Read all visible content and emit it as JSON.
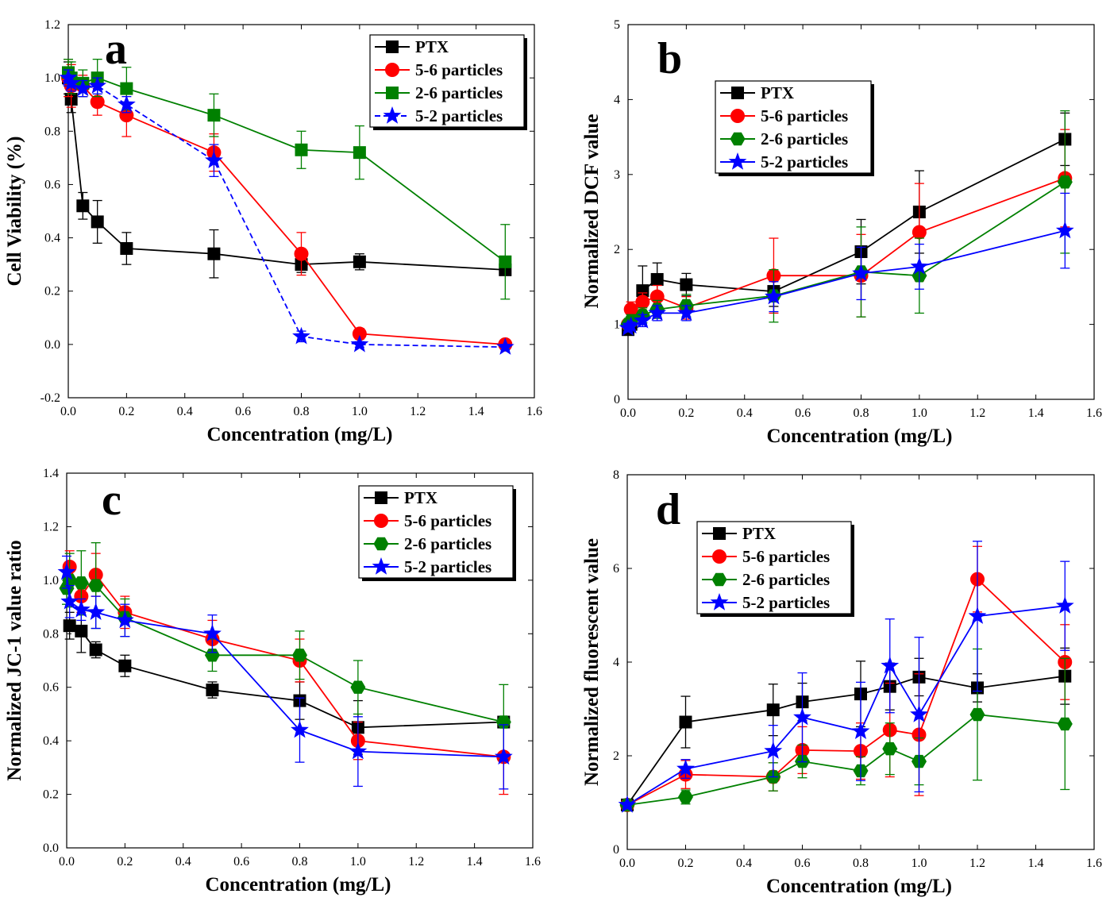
{
  "figure": {
    "colors": {
      "PTX": "#000000",
      "5-6 particles": "#ff0000",
      "2-6 particles": "#008000",
      "5-2 particles": "#0000ff"
    }
  },
  "chart_data": [
    {
      "panel": "a",
      "type": "line",
      "xlabel": "Concentration (mg/L)",
      "ylabel": "Cell Viability (%)",
      "xlim": [
        0.0,
        1.6
      ],
      "ylim": [
        -0.2,
        1.2
      ],
      "xticks": [
        "0.0",
        "0.2",
        "0.4",
        "0.6",
        "0.8",
        "1.0",
        "1.2",
        "1.4",
        "1.6"
      ],
      "yticks": [
        "-0.2",
        "0.0",
        "0.2",
        "0.4",
        "0.6",
        "0.8",
        "1.0",
        "1.2"
      ],
      "legend": {
        "position": "top-right",
        "entries": [
          "PTX",
          "5-6 particles",
          "2-6 particles",
          "5-2 particles"
        ]
      },
      "series": [
        {
          "name": "PTX",
          "marker": "square",
          "color": "#000000",
          "x": [
            0,
            0.01,
            0.05,
            0.1,
            0.2,
            0.5,
            0.8,
            1.0,
            1.5
          ],
          "y": [
            1.0,
            0.92,
            0.52,
            0.46,
            0.36,
            0.34,
            0.3,
            0.31,
            0.28
          ],
          "err": [
            0.06,
            0.05,
            0.05,
            0.08,
            0.06,
            0.09,
            0.03,
            0.03,
            0.02
          ]
        },
        {
          "name": "5-6 particles",
          "marker": "circle",
          "color": "#ff0000",
          "x": [
            0,
            0.01,
            0.05,
            0.1,
            0.2,
            0.5,
            0.8,
            1.0,
            1.5
          ],
          "y": [
            1.0,
            0.97,
            0.97,
            0.91,
            0.86,
            0.72,
            0.34,
            0.04,
            0.0
          ],
          "err": [
            0.07,
            0.08,
            0.04,
            0.05,
            0.08,
            0.07,
            0.08,
            0.02,
            0.01
          ]
        },
        {
          "name": "2-6 particles",
          "marker": "square",
          "color": "#008000",
          "x": [
            0,
            0.01,
            0.05,
            0.1,
            0.2,
            0.5,
            0.8,
            1.0,
            1.5
          ],
          "y": [
            1.02,
            1.0,
            0.98,
            1.0,
            0.96,
            0.86,
            0.73,
            0.72,
            0.31
          ],
          "err": [
            0.05,
            0.06,
            0.05,
            0.07,
            0.08,
            0.08,
            0.07,
            0.1,
            0.14
          ]
        },
        {
          "name": "5-2 particles",
          "marker": "star",
          "color": "#0000ff",
          "x": [
            0,
            0.01,
            0.05,
            0.1,
            0.2,
            0.5,
            0.8,
            1.0,
            1.5
          ],
          "y": [
            1.0,
            0.98,
            0.96,
            0.97,
            0.9,
            0.69,
            0.03,
            0.0,
            -0.01
          ],
          "err": [
            0.03,
            0.03,
            0.03,
            0.03,
            0.03,
            0.06,
            0.02,
            0.01,
            0.01
          ]
        }
      ]
    },
    {
      "panel": "b",
      "type": "line",
      "xlabel": "Concentration (mg/L)",
      "ylabel": "Normalized DCF value",
      "xlim": [
        0.0,
        1.6
      ],
      "ylim": [
        0,
        5
      ],
      "xticks": [
        "0.0",
        "0.2",
        "0.4",
        "0.6",
        "0.8",
        "1.0",
        "1.2",
        "1.4",
        "1.6"
      ],
      "yticks": [
        "0",
        "1",
        "2",
        "3",
        "4",
        "5"
      ],
      "legend": {
        "position": "upper-left",
        "entries": [
          "PTX",
          "5-6 particles",
          "2-6 particles",
          "5-2 particles"
        ]
      },
      "series": [
        {
          "name": "PTX",
          "marker": "square",
          "color": "#000000",
          "x": [
            0,
            0.01,
            0.05,
            0.1,
            0.2,
            0.5,
            0.8,
            1.0,
            1.5
          ],
          "y": [
            0.93,
            1.0,
            1.45,
            1.6,
            1.53,
            1.44,
            1.97,
            2.5,
            3.47
          ],
          "err": [
            0.05,
            0.08,
            0.33,
            0.22,
            0.15,
            0.2,
            0.43,
            0.55,
            0.35
          ]
        },
        {
          "name": "5-6 particles",
          "marker": "circle",
          "color": "#ff0000",
          "x": [
            0,
            0.01,
            0.05,
            0.1,
            0.2,
            0.5,
            0.8,
            1.0,
            1.5
          ],
          "y": [
            1.0,
            1.2,
            1.3,
            1.37,
            1.22,
            1.65,
            1.65,
            2.23,
            2.95
          ],
          "err": [
            0.05,
            0.1,
            0.12,
            0.15,
            0.15,
            0.5,
            0.55,
            0.65,
            0.65
          ]
        },
        {
          "name": "2-6 particles",
          "marker": "hexagon",
          "color": "#008000",
          "x": [
            0,
            0.01,
            0.05,
            0.1,
            0.2,
            0.5,
            0.8,
            1.0,
            1.5
          ],
          "y": [
            1.0,
            1.05,
            1.12,
            1.2,
            1.25,
            1.38,
            1.7,
            1.65,
            2.9
          ],
          "err": [
            0.05,
            0.08,
            0.1,
            0.12,
            0.15,
            0.35,
            0.6,
            0.5,
            0.95
          ]
        },
        {
          "name": "5-2 particles",
          "marker": "star",
          "color": "#0000ff",
          "x": [
            0,
            0.01,
            0.05,
            0.1,
            0.2,
            0.5,
            0.8,
            1.0,
            1.5
          ],
          "y": [
            0.95,
            0.98,
            1.05,
            1.15,
            1.15,
            1.37,
            1.68,
            1.77,
            2.25
          ],
          "err": [
            0.05,
            0.05,
            0.08,
            0.1,
            0.1,
            0.2,
            0.35,
            0.3,
            0.5
          ]
        }
      ]
    },
    {
      "panel": "c",
      "type": "line",
      "xlabel": "Concentration (mg/L)",
      "ylabel": "Normalized JC-1 value ratio",
      "xlim": [
        0.0,
        1.6
      ],
      "ylim": [
        0.0,
        1.4
      ],
      "xticks": [
        "0.0",
        "0.2",
        "0.4",
        "0.6",
        "0.8",
        "1.0",
        "1.2",
        "1.4",
        "1.6"
      ],
      "yticks": [
        "0.0",
        "0.2",
        "0.4",
        "0.6",
        "0.8",
        "1.0",
        "1.2",
        "1.4"
      ],
      "legend": {
        "position": "top-right",
        "entries": [
          "PTX",
          "5-6 particles",
          "2-6 particles",
          "5-2 particles"
        ]
      },
      "series": [
        {
          "name": "PTX",
          "marker": "square",
          "color": "#000000",
          "x": [
            0.01,
            0.05,
            0.1,
            0.2,
            0.5,
            0.8,
            1.0,
            1.5
          ],
          "y": [
            0.83,
            0.81,
            0.74,
            0.68,
            0.59,
            0.55,
            0.45,
            0.47
          ],
          "err": [
            0.05,
            0.08,
            0.03,
            0.04,
            0.03,
            0.07,
            0.1,
            0.02
          ]
        },
        {
          "name": "5-6 particles",
          "marker": "circle",
          "color": "#ff0000",
          "x": [
            0.01,
            0.05,
            0.1,
            0.2,
            0.5,
            0.8,
            1.0,
            1.5
          ],
          "y": [
            1.05,
            0.94,
            1.02,
            0.88,
            0.78,
            0.7,
            0.4,
            0.34
          ],
          "err": [
            0.06,
            0.06,
            0.08,
            0.06,
            0.07,
            0.08,
            0.07,
            0.14
          ]
        },
        {
          "name": "2-6 particles",
          "marker": "hexagon",
          "color": "#008000",
          "x": [
            0.0,
            0.01,
            0.05,
            0.1,
            0.2,
            0.5,
            0.8,
            1.0,
            1.5
          ],
          "y": [
            0.97,
            1.0,
            0.99,
            0.98,
            0.86,
            0.72,
            0.72,
            0.6,
            0.47
          ],
          "err": [
            0.06,
            0.1,
            0.12,
            0.16,
            0.07,
            0.06,
            0.09,
            0.1,
            0.14
          ]
        },
        {
          "name": "5-2 particles",
          "marker": "star",
          "color": "#0000ff",
          "x": [
            0.0,
            0.01,
            0.05,
            0.1,
            0.2,
            0.5,
            0.8,
            1.0,
            1.5
          ],
          "y": [
            1.03,
            0.92,
            0.89,
            0.88,
            0.85,
            0.8,
            0.44,
            0.36,
            0.34
          ],
          "err": [
            0.06,
            0.06,
            0.04,
            0.06,
            0.06,
            0.07,
            0.12,
            0.13,
            0.12
          ]
        }
      ]
    },
    {
      "panel": "d",
      "type": "line",
      "xlabel": "Concentration (mg/L)",
      "ylabel": "Normalized fluorescent value",
      "xlim": [
        0.0,
        1.6
      ],
      "ylim": [
        0,
        8
      ],
      "xticks": [
        "0.0",
        "0.2",
        "0.4",
        "0.6",
        "0.8",
        "1.0",
        "1.2",
        "1.4",
        "1.6"
      ],
      "yticks": [
        "0",
        "2",
        "4",
        "6",
        "8"
      ],
      "legend": {
        "position": "upper-left",
        "entries": [
          "PTX",
          "5-6 particles",
          "2-6 particles",
          "5-2 particles"
        ]
      },
      "series": [
        {
          "name": "PTX",
          "marker": "square",
          "color": "#000000",
          "x": [
            0,
            0.2,
            0.5,
            0.6,
            0.8,
            0.9,
            1.0,
            1.2,
            1.5
          ],
          "y": [
            0.95,
            2.72,
            2.98,
            3.15,
            3.32,
            3.48,
            3.68,
            3.45,
            3.7
          ],
          "err": [
            0.05,
            0.55,
            0.55,
            0.4,
            0.7,
            0.5,
            0.4,
            0.3,
            0.6
          ]
        },
        {
          "name": "5-6 particles",
          "marker": "circle",
          "color": "#ff0000",
          "x": [
            0,
            0.2,
            0.5,
            0.6,
            0.8,
            0.9,
            1.0,
            1.2,
            1.5
          ],
          "y": [
            0.95,
            1.6,
            1.55,
            2.12,
            2.1,
            2.55,
            2.45,
            5.77,
            4.0
          ],
          "err": [
            0.05,
            0.3,
            0.3,
            0.5,
            0.6,
            1.0,
            1.3,
            0.7,
            0.8
          ]
        },
        {
          "name": "2-6 particles",
          "marker": "hexagon",
          "color": "#008000",
          "x": [
            0,
            0.2,
            0.5,
            0.6,
            0.8,
            0.9,
            1.0,
            1.2,
            1.5
          ],
          "y": [
            0.95,
            1.12,
            1.55,
            1.88,
            1.68,
            2.15,
            1.88,
            2.88,
            2.68
          ],
          "err": [
            0.05,
            0.15,
            0.3,
            0.35,
            0.3,
            0.55,
            0.5,
            1.4,
            1.4
          ]
        },
        {
          "name": "5-2 particles",
          "marker": "star",
          "color": "#0000ff",
          "x": [
            0,
            0.2,
            0.5,
            0.6,
            0.8,
            0.9,
            1.0,
            1.2,
            1.5
          ],
          "y": [
            0.95,
            1.72,
            2.1,
            2.82,
            2.52,
            3.92,
            2.88,
            4.98,
            5.2
          ],
          "err": [
            0.05,
            0.2,
            0.55,
            0.95,
            1.05,
            1.0,
            1.65,
            1.6,
            0.95
          ]
        }
      ]
    }
  ]
}
